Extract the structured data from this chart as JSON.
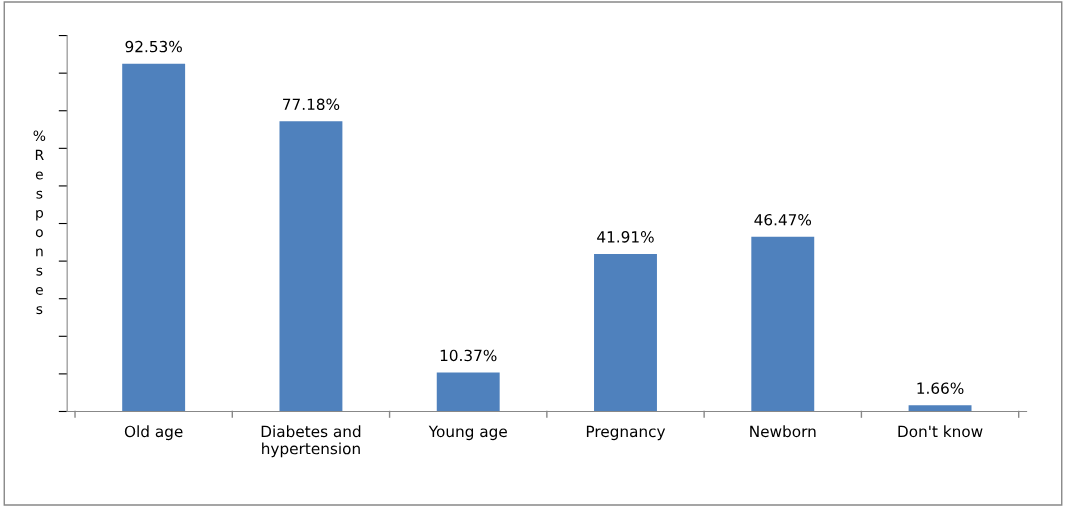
{
  "chart_data": {
    "type": "bar",
    "ylabel": "% Responses",
    "categories": [
      "Old age",
      "Diabetes and\nhypertension",
      "Young age",
      "Pregnancy",
      "Newborn",
      "Don't know"
    ],
    "values": [
      92.53,
      77.18,
      10.37,
      41.91,
      46.47,
      1.66
    ],
    "value_labels": [
      "92.53%",
      "77.18%",
      "10.37%",
      "41.91%",
      "46.47%",
      "1.66%"
    ],
    "color": "#4f81bd",
    "ylim": [
      0,
      100
    ],
    "yticks": [
      {
        "value": 0,
        "label": null
      },
      {
        "value": 10,
        "label": null
      },
      {
        "value": 20,
        "label": null
      },
      {
        "value": 30,
        "label": null
      },
      {
        "value": 40,
        "label": null
      },
      {
        "value": 50,
        "label": null
      },
      {
        "value": 60,
        "label": null
      },
      {
        "value": 70,
        "label": null
      },
      {
        "value": 80,
        "label": null
      },
      {
        "value": 90,
        "label": null
      },
      {
        "value": 100,
        "label": null
      }
    ],
    "tick_labels": "x",
    "grid": false,
    "legend": false
  }
}
